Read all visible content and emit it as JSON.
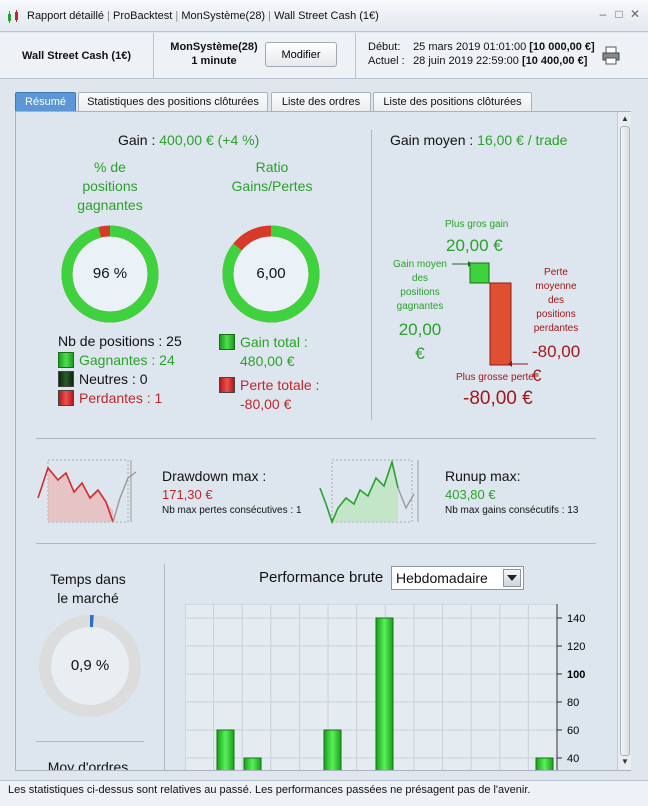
{
  "window": {
    "title_parts": [
      "Rapport détaillé",
      "ProBacktest",
      "MonSystème(28)",
      "Wall Street Cash (1€)"
    ],
    "sep": "|"
  },
  "infobar": {
    "instrument": "Wall Street Cash (1€)",
    "system_name": "MonSystème(28)",
    "timeframe": "1 minute",
    "modify_label": "Modifier",
    "start_label": "Début:",
    "start_date": "25 mars 2019 01:01:00",
    "start_value": "[10 000,00 €]",
    "current_label": "Actuel :",
    "current_date": "28 juin 2019 22:59:00",
    "current_value": "[10 400,00 €]"
  },
  "tabs": [
    "Résumé",
    "Statistiques des positions clôturées",
    "Liste des ordres",
    "Liste des positions clôturées"
  ],
  "summary": {
    "gain_label": "Gain :",
    "gain_value": "400,00 € (+4 %)",
    "pct_win_title": [
      "% de",
      "positions",
      "gagnantes"
    ],
    "pct_win_value": "96 %",
    "pct_win_fraction": 0.96,
    "ratio_title": [
      "Ratio",
      "Gains/Pertes"
    ],
    "ratio_value": "6,00",
    "ratio_fraction": 0.857,
    "nb_positions": "Nb de positions : 25",
    "gagnantes": "Gagnantes : 24",
    "neutres": "Neutres : 0",
    "perdantes": "Perdantes : 1",
    "gain_total_label": "Gain total :",
    "gain_total_value": "480,00 €",
    "perte_totale_label": "Perte totale :",
    "perte_totale_value": "-80,00 €",
    "gain_moyen_label": "Gain moyen :",
    "gain_moyen_value": "16,00 € / trade",
    "plus_gros_gain_label": "Plus gros gain",
    "plus_gros_gain_value": "20,00 €",
    "gain_moyen_gagnantes_label": [
      "Gain moyen",
      "des",
      "positions",
      "gagnantes"
    ],
    "gain_moyen_gagnantes_value": [
      "20,00",
      "€"
    ],
    "perte_moyenne_label": [
      "Perte",
      "moyenne",
      "des",
      "positions",
      "perdantes"
    ],
    "perte_moyenne_value": "-80,00 €",
    "plus_grosse_perte_label": "Plus grosse perte",
    "plus_grosse_perte_value": "-80,00 €",
    "drawdown_label": "Drawdown max :",
    "drawdown_value": "171,30 €",
    "max_pertes_consec": "Nb max pertes consécutives : 1",
    "runup_label": "Runup max:",
    "runup_value": "403,80 €",
    "max_gains_consec": "Nb max gains consécutifs : 13",
    "temps_marche_label": [
      "Temps dans",
      "le marché"
    ],
    "temps_marche_value": "0,9 %",
    "temps_marche_fraction": 0.009,
    "moy_ordres_label": "Moy d'ordres",
    "perf_label": "Performance brute",
    "perf_select": "Hebdomadaire"
  },
  "chart_data": {
    "type": "bar",
    "title": "Performance brute",
    "ylim": [
      30,
      150
    ],
    "yticks": [
      40,
      60,
      80,
      100,
      120,
      140
    ],
    "bold_tick": 100,
    "values": [
      60,
      40,
      null,
      null,
      60,
      140,
      null,
      null,
      null,
      null,
      null,
      null,
      40
    ],
    "grid": true
  },
  "footer": "Les statistiques ci-dessus sont relatives au passé. Les performances passées ne présagent pas de l'avenir."
}
